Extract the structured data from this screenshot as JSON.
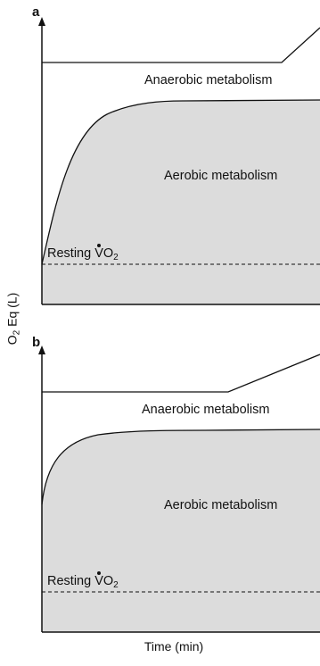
{
  "panels": [
    {
      "letter": "a",
      "anaerobic_label": "Anaerobic metabolism",
      "aerobic_label": "Aerobic metabolism",
      "resting_prefix": "Resting ",
      "resting_v": "V",
      "resting_o": "O",
      "resting_sub": "2"
    },
    {
      "letter": "b",
      "anaerobic_label": "Anaerobic metabolism",
      "aerobic_label": "Aerobic metabolism",
      "resting_prefix": "Resting ",
      "resting_v": "V",
      "resting_o": "O",
      "resting_sub": "2"
    }
  ],
  "axes": {
    "y_label_main": "O",
    "y_label_sub": "2",
    "y_label_rest": " Eq (L)",
    "x_label": "Time (min)"
  },
  "colors": {
    "aerobic_fill": "#dcdcdc",
    "line": "#111111"
  }
}
